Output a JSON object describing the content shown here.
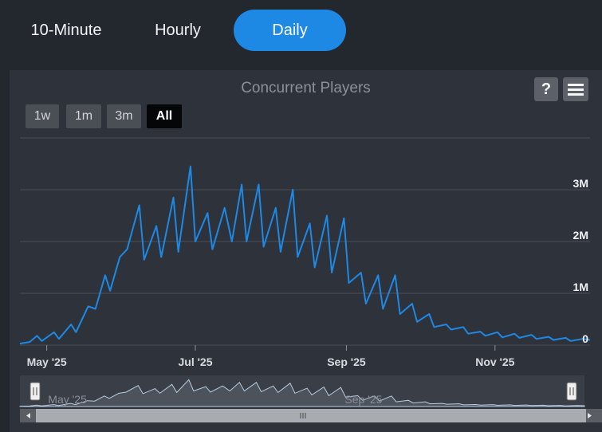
{
  "tabs": [
    {
      "label": "10-Minute",
      "active": false
    },
    {
      "label": "Hourly",
      "active": false
    },
    {
      "label": "Daily",
      "active": true
    }
  ],
  "colors": {
    "accent": "#1e88e5",
    "series": "#1e88e5",
    "navigator": "#b7cbe0"
  },
  "toolbar": {
    "help_label": "?",
    "menu_icon": "menu-icon"
  },
  "range_selector": [
    {
      "label": "1w",
      "active": false
    },
    {
      "label": "1m",
      "active": false
    },
    {
      "label": "3m",
      "active": false
    },
    {
      "label": "All",
      "active": true
    }
  ],
  "chart_data": {
    "type": "line",
    "title": "Concurrent Players",
    "x_start": "2025-04-20",
    "x_end": "2025-12-10",
    "y_range": [
      0,
      4000000
    ],
    "y_ticks": [
      {
        "value": 0,
        "label": "0"
      },
      {
        "value": 1000000,
        "label": "1M"
      },
      {
        "value": 2000000,
        "label": "2M"
      },
      {
        "value": 3000000,
        "label": "3M"
      }
    ],
    "x_ticks": [
      {
        "date": "2025-05-01",
        "label": "May '25"
      },
      {
        "date": "2025-07-01",
        "label": "Jul '25"
      },
      {
        "date": "2025-09-01",
        "label": "Sep '25"
      },
      {
        "date": "2025-11-01",
        "label": "Nov '25"
      }
    ],
    "navigator_labels": [
      {
        "date": "2025-05-01",
        "label": "May '25"
      },
      {
        "date": "2025-09-01",
        "label": "Sep '25"
      }
    ],
    "grid": true,
    "legend": "none",
    "series": [
      {
        "values": [
          [
            "2025-04-20",
            30000
          ],
          [
            "2025-04-24",
            60000
          ],
          [
            "2025-04-27",
            180000
          ],
          [
            "2025-04-29",
            80000
          ],
          [
            "2025-05-04",
            250000
          ],
          [
            "2025-05-06",
            120000
          ],
          [
            "2025-05-11",
            400000
          ],
          [
            "2025-05-13",
            250000
          ],
          [
            "2025-05-18",
            750000
          ],
          [
            "2025-05-21",
            700000
          ],
          [
            "2025-05-25",
            1350000
          ],
          [
            "2025-05-27",
            1050000
          ],
          [
            "2025-05-31",
            1700000
          ],
          [
            "2025-06-03",
            1850000
          ],
          [
            "2025-06-08",
            2700000
          ],
          [
            "2025-06-10",
            1650000
          ],
          [
            "2025-06-15",
            2300000
          ],
          [
            "2025-06-17",
            1700000
          ],
          [
            "2025-06-22",
            2850000
          ],
          [
            "2025-06-24",
            1800000
          ],
          [
            "2025-06-29",
            3450000
          ],
          [
            "2025-07-01",
            2000000
          ],
          [
            "2025-07-06",
            2550000
          ],
          [
            "2025-07-08",
            1850000
          ],
          [
            "2025-07-13",
            2650000
          ],
          [
            "2025-07-16",
            2000000
          ],
          [
            "2025-07-20",
            3100000
          ],
          [
            "2025-07-22",
            2000000
          ],
          [
            "2025-07-27",
            3100000
          ],
          [
            "2025-07-29",
            1900000
          ],
          [
            "2025-08-03",
            2650000
          ],
          [
            "2025-08-05",
            1800000
          ],
          [
            "2025-08-10",
            3000000
          ],
          [
            "2025-08-12",
            1700000
          ],
          [
            "2025-08-17",
            2350000
          ],
          [
            "2025-08-19",
            1500000
          ],
          [
            "2025-08-24",
            2500000
          ],
          [
            "2025-08-26",
            1400000
          ],
          [
            "2025-08-31",
            2450000
          ],
          [
            "2025-09-02",
            1200000
          ],
          [
            "2025-09-07",
            1400000
          ],
          [
            "2025-09-09",
            800000
          ],
          [
            "2025-09-14",
            1350000
          ],
          [
            "2025-09-16",
            700000
          ],
          [
            "2025-09-21",
            1350000
          ],
          [
            "2025-09-23",
            600000
          ],
          [
            "2025-09-28",
            800000
          ],
          [
            "2025-09-30",
            450000
          ],
          [
            "2025-10-05",
            600000
          ],
          [
            "2025-10-07",
            350000
          ],
          [
            "2025-10-12",
            400000
          ],
          [
            "2025-10-14",
            300000
          ],
          [
            "2025-10-19",
            350000
          ],
          [
            "2025-10-21",
            220000
          ],
          [
            "2025-10-26",
            260000
          ],
          [
            "2025-10-28",
            180000
          ],
          [
            "2025-11-02",
            250000
          ],
          [
            "2025-11-04",
            150000
          ],
          [
            "2025-11-09",
            220000
          ],
          [
            "2025-11-11",
            140000
          ],
          [
            "2025-11-16",
            200000
          ],
          [
            "2025-11-18",
            120000
          ],
          [
            "2025-11-23",
            160000
          ],
          [
            "2025-11-25",
            100000
          ],
          [
            "2025-11-30",
            140000
          ],
          [
            "2025-12-02",
            80000
          ],
          [
            "2025-12-07",
            120000
          ],
          [
            "2025-12-10",
            100000
          ]
        ]
      }
    ]
  }
}
